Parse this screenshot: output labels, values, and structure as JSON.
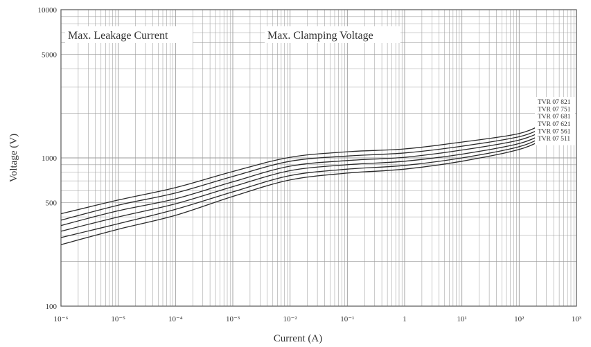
{
  "chart_data": {
    "type": "line",
    "title": "",
    "xlabel": "Current (A)",
    "ylabel": "Voltage (V)",
    "x_scale": "log",
    "y_scale": "log",
    "xlim": [
      1e-06,
      1000
    ],
    "ylim": [
      100,
      10000
    ],
    "x_tick_values": [
      1e-06,
      1e-05,
      0.0001,
      0.001,
      0.01,
      0.1,
      1,
      10,
      100,
      1000
    ],
    "x_tick_labels": [
      "10⁻⁶",
      "10⁻⁵",
      "10⁻⁴",
      "10⁻³",
      "10⁻²",
      "10⁻¹",
      "1",
      "10¹",
      "10²",
      "10³"
    ],
    "y_tick_values": [
      100,
      500,
      1000,
      5000,
      10000
    ],
    "y_tick_labels": [
      "100",
      "500",
      "1000",
      "5000",
      "10000"
    ],
    "grid": true,
    "annotations": [
      "Max. Leakage Current",
      "Max. Clamping Voltage"
    ],
    "series": [
      {
        "name": "TVR 07 821",
        "x": [
          1e-06,
          1e-05,
          0.0001,
          0.001,
          0.01,
          0.1,
          1,
          10,
          100,
          300
        ],
        "y": [
          420,
          520,
          630,
          810,
          1010,
          1100,
          1150,
          1280,
          1460,
          1750
        ]
      },
      {
        "name": "TVR 07 751",
        "x": [
          1e-06,
          1e-05,
          0.0001,
          0.001,
          0.01,
          0.1,
          1,
          10,
          100,
          300
        ],
        "y": [
          380,
          480,
          580,
          750,
          950,
          1030,
          1080,
          1200,
          1390,
          1640
        ]
      },
      {
        "name": "TVR 07 681",
        "x": [
          1e-06,
          1e-05,
          0.0001,
          0.001,
          0.01,
          0.1,
          1,
          10,
          100,
          300
        ],
        "y": [
          350,
          440,
          530,
          690,
          880,
          960,
          1010,
          1130,
          1320,
          1560
        ]
      },
      {
        "name": "TVR 07 621",
        "x": [
          1e-06,
          1e-05,
          0.0001,
          0.001,
          0.01,
          0.1,
          1,
          10,
          100,
          300
        ],
        "y": [
          320,
          400,
          490,
          640,
          820,
          900,
          950,
          1060,
          1250,
          1490
        ]
      },
      {
        "name": "TVR 07 561",
        "x": [
          1e-06,
          1e-05,
          0.0001,
          0.001,
          0.01,
          0.1,
          1,
          10,
          100,
          300
        ],
        "y": [
          290,
          360,
          450,
          590,
          760,
          840,
          890,
          1000,
          1190,
          1430
        ]
      },
      {
        "name": "TVR 07 511",
        "x": [
          1e-06,
          1e-05,
          0.0001,
          0.001,
          0.01,
          0.1,
          1,
          10,
          100,
          300
        ],
        "y": [
          260,
          330,
          410,
          550,
          710,
          790,
          840,
          950,
          1140,
          1370
        ]
      }
    ],
    "legend_placement": "right, at curve ends",
    "line_color": "#2a2a2a",
    "grid_color": "#9a9a9a"
  }
}
